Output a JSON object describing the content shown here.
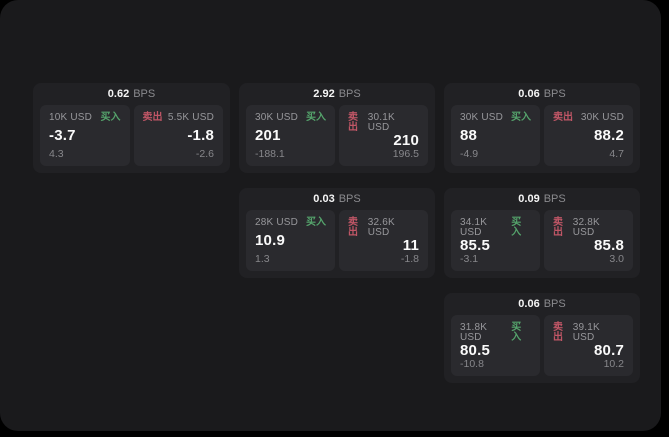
{
  "labels": {
    "buy_tag": "买入",
    "sell_tag": "卖出",
    "bps_unit": "BPS"
  },
  "colors": {
    "page_bg": "#000000",
    "surface_bg": "#1a1a1c",
    "card_bg": "#212124",
    "panel_bg": "#2a2a2e",
    "text_primary": "#f5f5f5",
    "text_muted": "#97979b",
    "buy_green": "#55a46c",
    "sell_red": "#c05666"
  },
  "cards": [
    {
      "bps_value": "0.62",
      "grid": {
        "row": 1,
        "col": 1
      },
      "buy": {
        "notional": "10K USD",
        "price": "-3.7",
        "reference": "4.3"
      },
      "sell": {
        "notional": "5.5K USD",
        "price": "-1.8",
        "reference": "-2.6"
      }
    },
    {
      "bps_value": "2.92",
      "grid": {
        "row": 1,
        "col": 2
      },
      "buy": {
        "notional": "30K USD",
        "price": "201",
        "reference": "-188.1"
      },
      "sell": {
        "notional": "30.1K USD",
        "price": "210",
        "reference": "196.5"
      }
    },
    {
      "bps_value": "0.06",
      "grid": {
        "row": 1,
        "col": 3
      },
      "buy": {
        "notional": "30K USD",
        "price": "88",
        "reference": "-4.9"
      },
      "sell": {
        "notional": "30K USD",
        "price": "88.2",
        "reference": "4.7"
      }
    },
    {
      "bps_value": "0.03",
      "grid": {
        "row": 2,
        "col": 2
      },
      "buy": {
        "notional": "28K USD",
        "price": "10.9",
        "reference": "1.3"
      },
      "sell": {
        "notional": "32.6K USD",
        "price": "11",
        "reference": "-1.8"
      }
    },
    {
      "bps_value": "0.09",
      "grid": {
        "row": 2,
        "col": 3
      },
      "buy": {
        "notional": "34.1K USD",
        "price": "85.5",
        "reference": "-3.1"
      },
      "sell": {
        "notional": "32.8K USD",
        "price": "85.8",
        "reference": "3.0"
      }
    },
    {
      "bps_value": "0.06",
      "grid": {
        "row": 3,
        "col": 3
      },
      "buy": {
        "notional": "31.8K USD",
        "price": "80.5",
        "reference": "-10.8"
      },
      "sell": {
        "notional": "39.1K USD",
        "price": "80.7",
        "reference": "10.2"
      }
    }
  ]
}
